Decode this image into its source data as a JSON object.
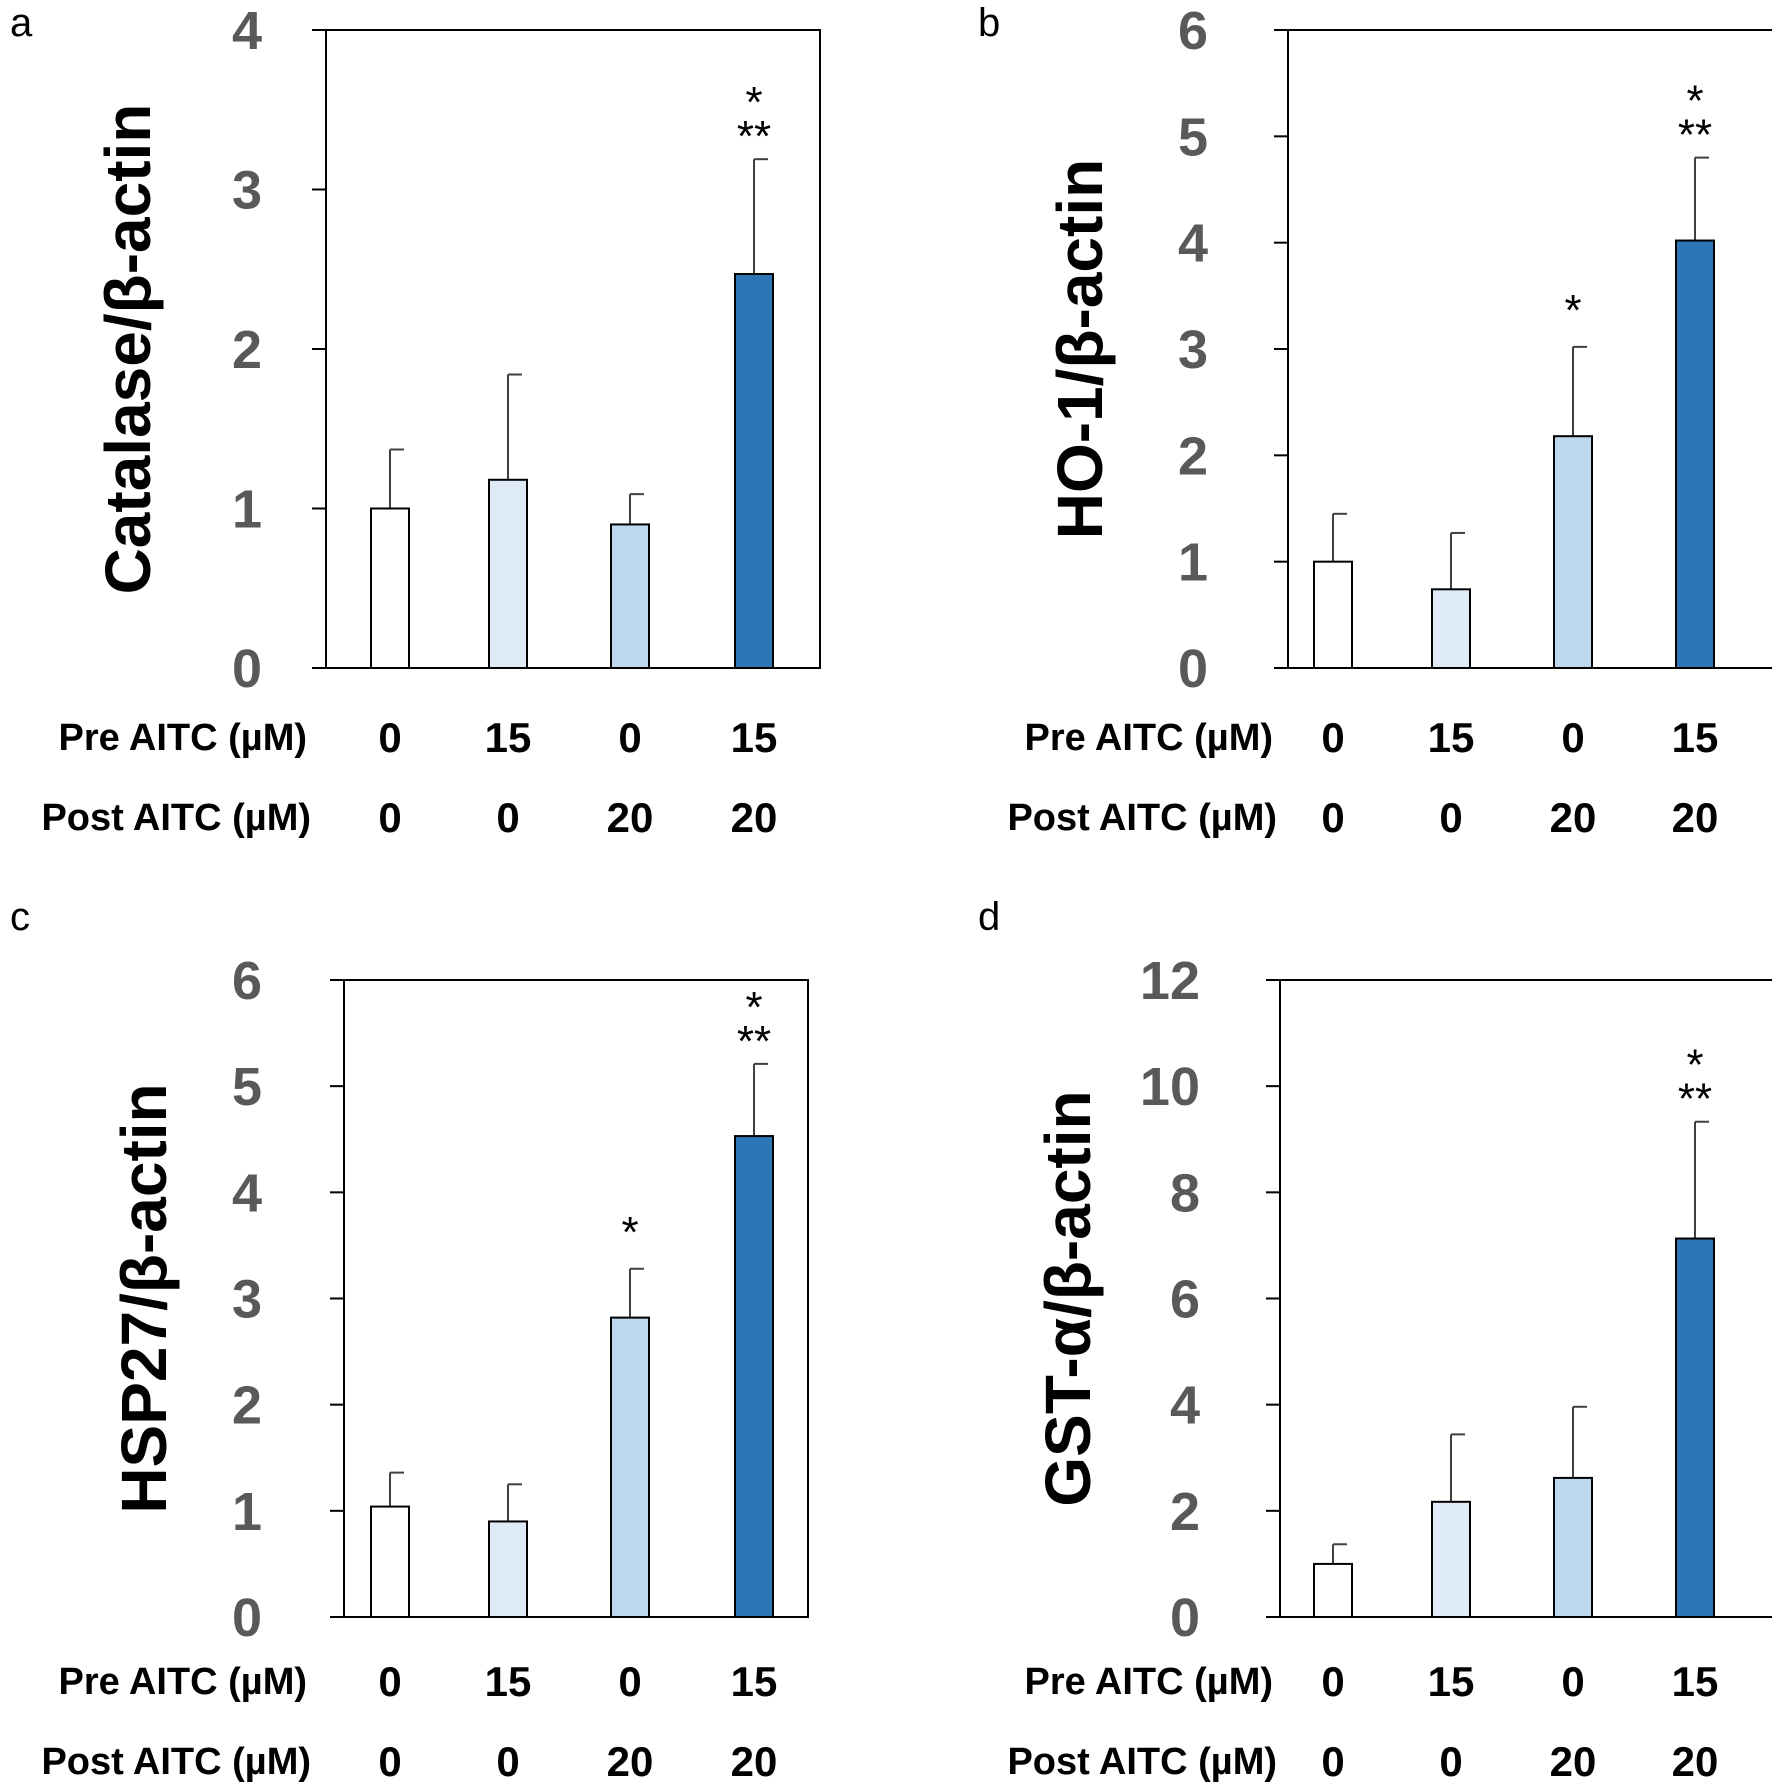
{
  "chart_data": [
    {
      "type": "bar",
      "panel": "a",
      "ylabel": "Catalase/β-actin",
      "ylim": [
        0,
        4
      ],
      "yticks": [
        0,
        1,
        2,
        3,
        4
      ],
      "row_labels": [
        "Pre AITC (µM)",
        "Post AITC (µM)"
      ],
      "categories": [
        {
          "pre": "0",
          "post": "0"
        },
        {
          "pre": "15",
          "post": "0"
        },
        {
          "pre": "0",
          "post": "20"
        },
        {
          "pre": "15",
          "post": "20"
        }
      ],
      "values": [
        1.0,
        1.18,
        0.9,
        2.47
      ],
      "errors": [
        0.37,
        0.66,
        0.19,
        0.72
      ],
      "significance": [
        [],
        [],
        [],
        [
          "*",
          "**"
        ]
      ],
      "colors": [
        "#ffffff",
        "#deebf7",
        "#bdd7ee",
        "#2e75b6"
      ]
    },
    {
      "type": "bar",
      "panel": "b",
      "ylabel": "HO-1/β-actin",
      "ylim": [
        0,
        6
      ],
      "yticks": [
        0,
        1,
        2,
        3,
        4,
        5,
        6
      ],
      "row_labels": [
        "Pre AITC (µM)",
        "Post AITC (µM)"
      ],
      "categories": [
        {
          "pre": "0",
          "post": "0"
        },
        {
          "pre": "15",
          "post": "0"
        },
        {
          "pre": "0",
          "post": "20"
        },
        {
          "pre": "15",
          "post": "20"
        }
      ],
      "values": [
        1.0,
        0.74,
        2.18,
        4.02
      ],
      "errors": [
        0.45,
        0.53,
        0.84,
        0.78
      ],
      "significance": [
        [],
        [],
        [
          "*"
        ],
        [
          "*",
          "**"
        ]
      ],
      "colors": [
        "#ffffff",
        "#deebf7",
        "#bdd7ee",
        "#2e75b6"
      ]
    },
    {
      "type": "bar",
      "panel": "c",
      "ylabel": "HSP27/β-actin",
      "ylim": [
        0,
        6
      ],
      "yticks": [
        0,
        1,
        2,
        3,
        4,
        5,
        6
      ],
      "row_labels": [
        "Pre AITC (µM)",
        "Post AITC (µM)"
      ],
      "categories": [
        {
          "pre": "0",
          "post": "0"
        },
        {
          "pre": "15",
          "post": "0"
        },
        {
          "pre": "0",
          "post": "20"
        },
        {
          "pre": "15",
          "post": "20"
        }
      ],
      "values": [
        1.04,
        0.9,
        2.82,
        4.53
      ],
      "errors": [
        0.32,
        0.35,
        0.46,
        0.68
      ],
      "significance": [
        [],
        [],
        [
          "*"
        ],
        [
          "*",
          "**"
        ]
      ],
      "colors": [
        "#ffffff",
        "#deebf7",
        "#bdd7ee",
        "#2e75b6"
      ]
    },
    {
      "type": "bar",
      "panel": "d",
      "ylabel": "GST-α/β-actin",
      "ylim": [
        0,
        12
      ],
      "yticks": [
        0,
        2,
        4,
        6,
        8,
        10,
        12
      ],
      "row_labels": [
        "Pre AITC (µM)",
        "Post AITC (µM)"
      ],
      "categories": [
        {
          "pre": "0",
          "post": "0"
        },
        {
          "pre": "15",
          "post": "0"
        },
        {
          "pre": "0",
          "post": "20"
        },
        {
          "pre": "15",
          "post": "20"
        }
      ],
      "values": [
        1.0,
        2.17,
        2.62,
        7.13
      ],
      "errors": [
        0.37,
        1.27,
        1.34,
        2.2
      ],
      "significance": [
        [],
        [],
        [],
        [
          "*",
          "**"
        ]
      ],
      "colors": [
        "#ffffff",
        "#deebf7",
        "#bdd7ee",
        "#2e75b6"
      ]
    }
  ]
}
